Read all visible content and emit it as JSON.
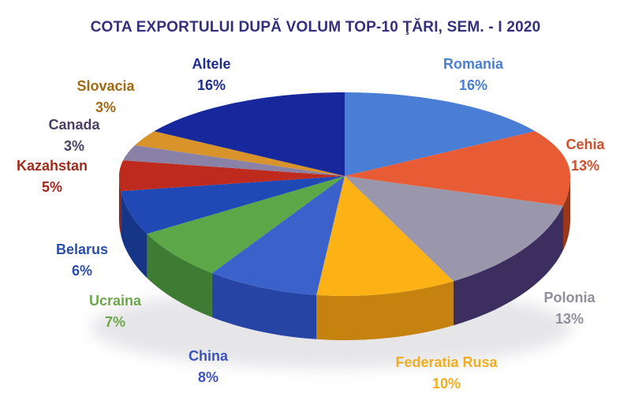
{
  "title": "COTA EXPORTULUI DUPĂ VOLUM TOP-10 ŢĂRI, SEM. - I 2020",
  "title_color": "#35307B",
  "background": "#FFFFFF",
  "chart_data": {
    "type": "pie",
    "is_3d": true,
    "start_angle_deg": 0,
    "direction": "clockwise",
    "title": "COTA EXPORTULUI DUPĂ VOLUM TOP-10 ŢĂRI, SEM. - I 2020",
    "unit": "%",
    "total": 100,
    "legend_position": "labels-around-pie",
    "slices": [
      {
        "label": "Romania",
        "value": 16,
        "pct_label": "16%",
        "color": "#4A7ED4",
        "side_color": "#2A4F96",
        "label_color": "#4A7ED3"
      },
      {
        "label": "Cehia",
        "value": 13,
        "pct_label": "13%",
        "color": "#E85C35",
        "side_color": "#99371B",
        "label_color": "#CC4F2E"
      },
      {
        "label": "Polonia",
        "value": 13,
        "pct_label": "13%",
        "color": "#9A96AB",
        "side_color": "#3C2E5E",
        "label_color": "#8F8F9E"
      },
      {
        "label": "Federatia Rusa",
        "value": 10,
        "pct_label": "10%",
        "color": "#FCB214",
        "side_color": "#C5820E",
        "label_color": "#EFAD1F"
      },
      {
        "label": "China",
        "value": 8,
        "pct_label": "8%",
        "color": "#3B62CB",
        "side_color": "#2544A3",
        "label_color": "#3A53BE"
      },
      {
        "label": "Ucraina",
        "value": 7,
        "pct_label": "7%",
        "color": "#5CA748",
        "side_color": "#3E7C33",
        "label_color": "#6EA64C"
      },
      {
        "label": "Belarus",
        "value": 6,
        "pct_label": "6%",
        "color": "#2149B6",
        "side_color": "#173587",
        "label_color": "#2B4EA8"
      },
      {
        "label": "Kazahstan",
        "value": 5,
        "pct_label": "5%",
        "color": "#BE2A1E",
        "side_color": "#8C1D15",
        "label_color": "#A32A1C"
      },
      {
        "label": "Canada",
        "value": 3,
        "pct_label": "3%",
        "color": "#8981A6",
        "side_color": "#5C567A",
        "label_color": "#4A4063"
      },
      {
        "label": "Slovacia",
        "value": 3,
        "pct_label": "3%",
        "color": "#D8932B",
        "side_color": "#9E6713",
        "label_color": "#A06A13"
      },
      {
        "label": "Altele",
        "value": 16,
        "pct_label": "16%",
        "color": "#16289C",
        "side_color": "#0E1B6B",
        "label_color": "#1F2C8E"
      }
    ]
  }
}
